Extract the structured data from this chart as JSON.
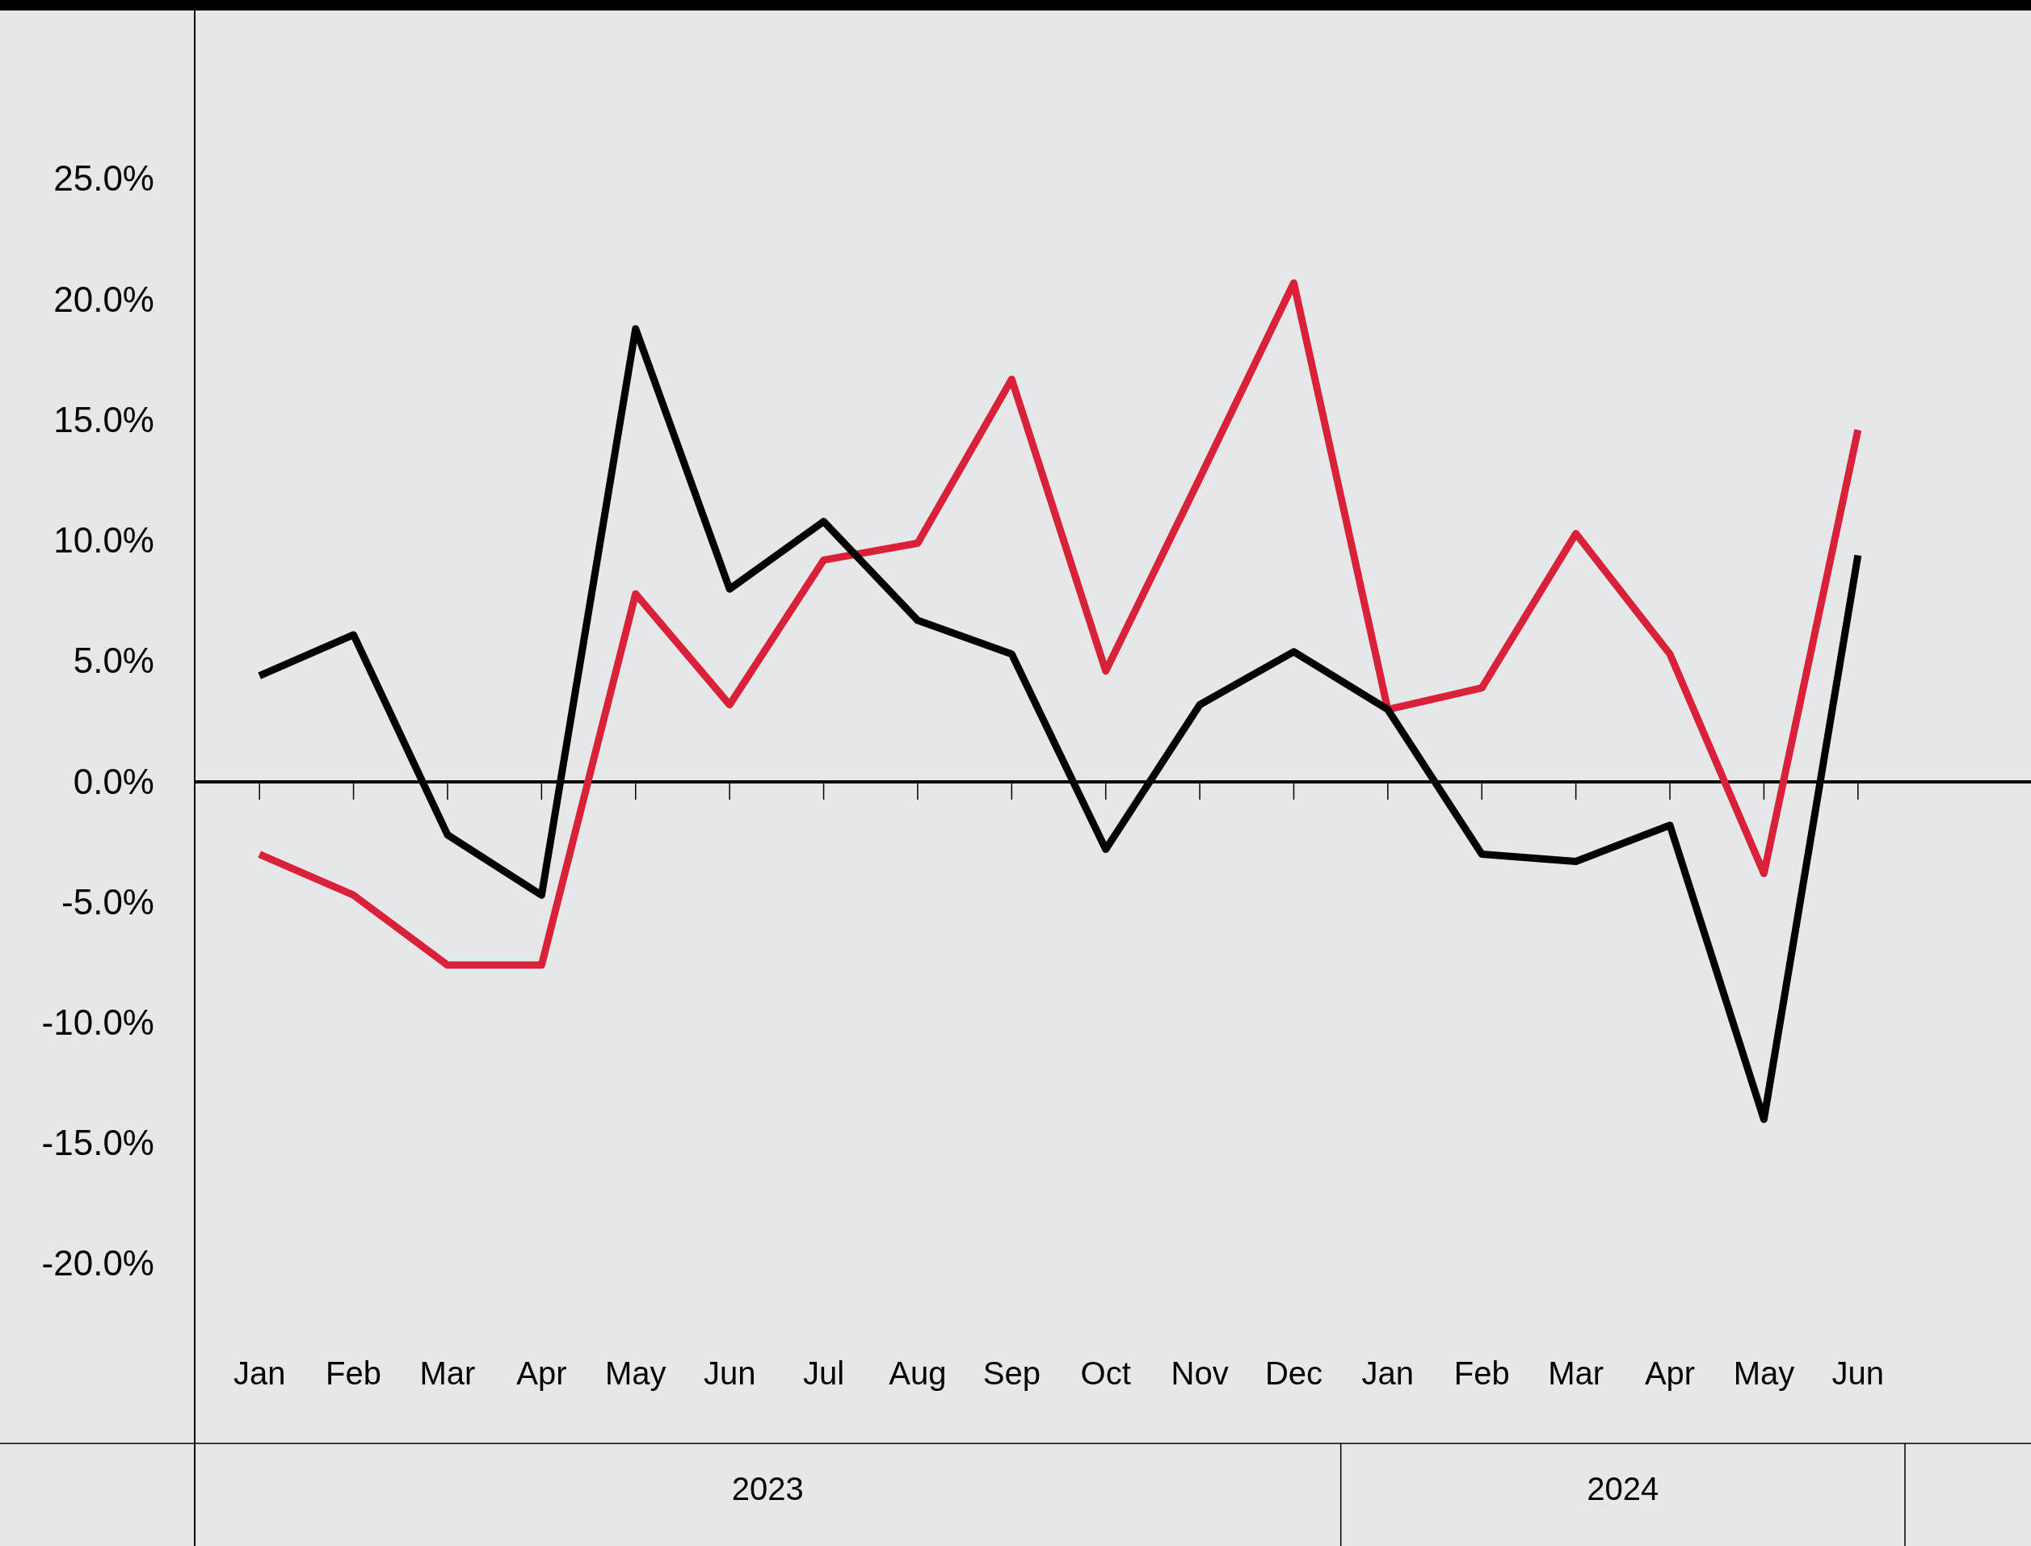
{
  "chart_data": {
    "type": "line",
    "categories": [
      "Jan",
      "Feb",
      "Mar",
      "Apr",
      "May",
      "Jun",
      "Jul",
      "Aug",
      "Sep",
      "Oct",
      "Nov",
      "Dec",
      "Jan",
      "Feb",
      "Mar",
      "Apr",
      "May",
      "Jun"
    ],
    "series": [
      {
        "color": "#d9213a",
        "values": [
          -3.0,
          -4.7,
          -7.6,
          -7.6,
          7.8,
          3.2,
          9.2,
          9.9,
          16.7,
          4.6,
          12.6,
          20.7,
          3.0,
          3.9,
          10.3,
          5.3,
          -3.8,
          14.6
        ]
      },
      {
        "color": "#000000",
        "values": [
          4.4,
          6.1,
          -2.2,
          -4.7,
          18.8,
          8.0,
          10.8,
          6.7,
          5.3,
          -2.8,
          3.2,
          5.4,
          3.0,
          -3.0,
          -3.3,
          -1.8,
          -14.0,
          9.4
        ]
      }
    ],
    "ylim": [
      -31.7,
      32
    ],
    "yticks": [
      {
        "value": -20,
        "label": "-20.0%"
      },
      {
        "value": -15,
        "label": "-15.0%"
      },
      {
        "value": -10,
        "label": "-10.0%"
      },
      {
        "value": -5,
        "label": "-5.0%"
      },
      {
        "value": 0,
        "label": "0.0%"
      },
      {
        "value": 5,
        "label": "5.0%"
      },
      {
        "value": 10,
        "label": "10.0%"
      },
      {
        "value": 15,
        "label": "15.0%"
      },
      {
        "value": 20,
        "label": "20.0%"
      },
      {
        "value": 25,
        "label": "25.0%"
      }
    ],
    "ref_lines": [
      {
        "axis": "y",
        "value": 0,
        "color": "#000000"
      }
    ],
    "annotations": [
      "2023",
      "2024"
    ],
    "grid": false,
    "marker": "none",
    "line_style": "solid"
  }
}
